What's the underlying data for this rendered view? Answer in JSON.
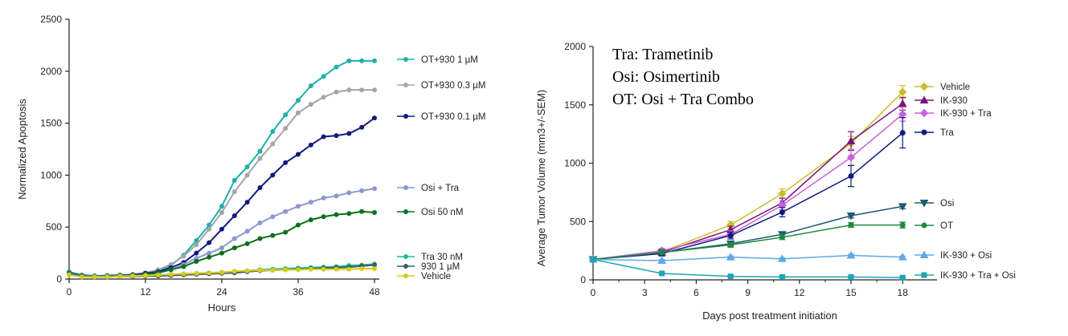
{
  "chart_data": [
    {
      "type": "line",
      "title": "",
      "xlabel": "Hours",
      "ylabel": "Normalized Apoptosis",
      "xlim": [
        0,
        48
      ],
      "ylim": [
        0,
        2500
      ],
      "xticks": [
        "0",
        "12",
        "24",
        "36",
        "48"
      ],
      "yticks": [
        "0",
        "500",
        "1000",
        "1500",
        "2000",
        "2500"
      ],
      "grid": false,
      "legend_position": "right",
      "x": [
        0,
        2,
        4,
        6,
        8,
        10,
        12,
        14,
        16,
        18,
        20,
        22,
        24,
        26,
        28,
        30,
        32,
        34,
        36,
        38,
        40,
        42,
        44,
        46,
        48
      ],
      "series": [
        {
          "name": "OT+930 1 µM",
          "color": "#1fb0ab",
          "marker": "circle",
          "values": [
            70,
            40,
            30,
            35,
            40,
            45,
            60,
            80,
            130,
            230,
            370,
            520,
            700,
            950,
            1080,
            1230,
            1420,
            1580,
            1720,
            1860,
            1950,
            2040,
            2100,
            2100,
            2100
          ]
        },
        {
          "name": "OT+930 0.3 µM",
          "color": "#a6a6a6",
          "marker": "circle",
          "values": [
            65,
            40,
            30,
            35,
            40,
            45,
            60,
            90,
            140,
            220,
            330,
            480,
            640,
            840,
            1000,
            1160,
            1300,
            1450,
            1600,
            1680,
            1750,
            1800,
            1820,
            1820,
            1820
          ]
        },
        {
          "name": "OT+930 0.1 µM",
          "color": "#10197f",
          "marker": "circle",
          "values": [
            60,
            35,
            30,
            30,
            35,
            40,
            55,
            70,
            110,
            160,
            250,
            350,
            480,
            610,
            740,
            880,
            1000,
            1120,
            1200,
            1290,
            1370,
            1380,
            1400,
            1460,
            1550
          ]
        },
        {
          "name": "Osi + Tra",
          "color": "#8c96cf",
          "marker": "circle",
          "values": [
            55,
            30,
            25,
            25,
            30,
            35,
            45,
            60,
            90,
            140,
            200,
            250,
            300,
            390,
            460,
            540,
            600,
            650,
            700,
            740,
            780,
            800,
            830,
            850,
            870
          ]
        },
        {
          "name": "Osi 50 nM",
          "color": "#0a6f1b",
          "marker": "circle",
          "values": [
            55,
            30,
            25,
            25,
            30,
            35,
            45,
            60,
            90,
            120,
            170,
            210,
            250,
            300,
            340,
            390,
            420,
            450,
            520,
            570,
            600,
            620,
            630,
            650,
            640
          ]
        },
        {
          "name": "Tra 30 nM",
          "color": "#1dbf8c",
          "marker": "circle",
          "values": [
            50,
            30,
            25,
            25,
            30,
            30,
            35,
            40,
            45,
            50,
            55,
            60,
            65,
            70,
            80,
            90,
            95,
            100,
            105,
            110,
            115,
            120,
            130,
            135,
            145
          ]
        },
        {
          "name": "930 1 µM",
          "color": "#3a5c6e",
          "marker": "circle",
          "values": [
            45,
            25,
            20,
            20,
            25,
            25,
            30,
            30,
            35,
            40,
            45,
            50,
            55,
            60,
            70,
            80,
            85,
            90,
            95,
            100,
            105,
            110,
            115,
            125,
            135
          ]
        },
        {
          "name": "Vehicle",
          "color": "#d8cc1a",
          "marker": "circle",
          "values": [
            40,
            20,
            20,
            20,
            25,
            30,
            35,
            40,
            45,
            50,
            55,
            60,
            65,
            75,
            80,
            85,
            85,
            90,
            90,
            95,
            95,
            95,
            95,
            100,
            100
          ]
        }
      ]
    },
    {
      "type": "line",
      "title": "",
      "xlabel": "Days post treatment initiation",
      "ylabel": "Average Tumor Volume (mm3+/-SEM)",
      "xlim": [
        0,
        20
      ],
      "ylim": [
        0,
        2000
      ],
      "xticks": [
        "0",
        "3",
        "6",
        "9",
        "12",
        "15",
        "18"
      ],
      "yticks": [
        "0",
        "500",
        "1000",
        "1500",
        "2000"
      ],
      "grid": false,
      "legend_position": "right",
      "annotations": [
        "Tra: Trametinib",
        "Osi: Osimertinib",
        "OT: Osi + Tra Combo"
      ],
      "x": [
        0,
        4,
        8,
        11,
        15,
        18
      ],
      "series": [
        {
          "name": "Vehicle",
          "color": "#c9bd2a",
          "marker": "diamond",
          "values": [
            175,
            240,
            470,
            740,
            1170,
            1610
          ],
          "errors": [
            0,
            20,
            30,
            40,
            60,
            55
          ]
        },
        {
          "name": "IK-930",
          "color": "#7b1479",
          "marker": "triangle",
          "values": [
            175,
            235,
            430,
            660,
            1190,
            1510
          ],
          "errors": [
            0,
            20,
            30,
            40,
            80,
            55
          ]
        },
        {
          "name": "IK-930 + Tra",
          "color": "#c763d9",
          "marker": "diamond",
          "values": [
            175,
            250,
            390,
            640,
            1050,
            1420
          ],
          "errors": [
            0,
            20,
            30,
            40,
            70,
            60
          ]
        },
        {
          "name": "Tra",
          "color": "#10197f",
          "marker": "circle",
          "values": [
            175,
            225,
            380,
            580,
            890,
            1260
          ],
          "errors": [
            0,
            20,
            30,
            40,
            90,
            130
          ]
        },
        {
          "name": "Osi",
          "color": "#1e5c6e",
          "marker": "triangle-down",
          "values": [
            175,
            235,
            310,
            390,
            550,
            630
          ],
          "errors": [
            0,
            15,
            20,
            20,
            20,
            20
          ]
        },
        {
          "name": "OT",
          "color": "#1e8a3e",
          "marker": "circle",
          "values": [
            175,
            235,
            300,
            365,
            470,
            470
          ],
          "errors": [
            0,
            15,
            20,
            20,
            20,
            25
          ]
        },
        {
          "name": "IK-930 + Osi",
          "color": "#5ea8e8",
          "marker": "triangle",
          "values": [
            175,
            165,
            195,
            180,
            210,
            195
          ],
          "errors": [
            0,
            10,
            10,
            10,
            10,
            10
          ]
        },
        {
          "name": "IK-930 + Tra + Osi",
          "color": "#1fa5b5",
          "marker": "square",
          "values": [
            175,
            55,
            30,
            25,
            25,
            20
          ],
          "errors": [
            0,
            5,
            5,
            5,
            5,
            5
          ]
        }
      ]
    }
  ]
}
